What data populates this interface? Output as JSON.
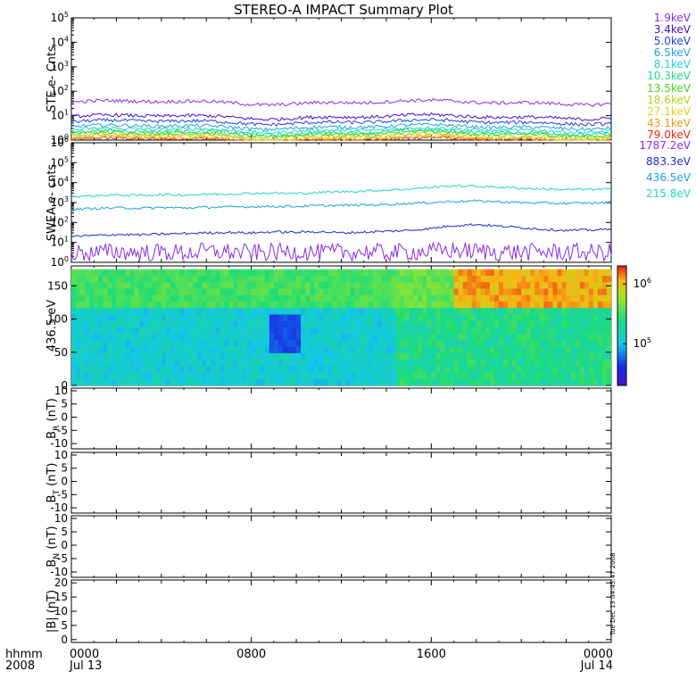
{
  "title": "STEREO-A IMPACT Summary Plot",
  "timestamp": "Tue Dec 13 04:45:47 2008",
  "x_axis": {
    "corner_top": "hhmm",
    "corner_bottom": "2008"
  },
  "ste_legend": [
    {
      "label": "1.9keV",
      "color": "#8a2be2"
    },
    {
      "label": "3.4keV",
      "color": "#4b0bcc"
    },
    {
      "label": "5.0keV",
      "color": "#1f3fe0"
    },
    {
      "label": "6.5keV",
      "color": "#1aa6e0"
    },
    {
      "label": "8.1keV",
      "color": "#20d6c8"
    },
    {
      "label": "10.3keV",
      "color": "#1bd98a"
    },
    {
      "label": "13.5keV",
      "color": "#44d41a"
    },
    {
      "label": "18.6keV",
      "color": "#b2d11a"
    },
    {
      "label": "27.1keV",
      "color": "#e6d21a"
    },
    {
      "label": "43.1keV",
      "color": "#e89a10"
    },
    {
      "label": "79.0keV",
      "color": "#e0280f"
    }
  ],
  "swea_legend": [
    {
      "label": "1787.2eV",
      "color": "#8a2be2"
    },
    {
      "label": "883.3eV",
      "color": "#1a2ad0"
    },
    {
      "label": "436.5eV",
      "color": "#1aa0e0"
    },
    {
      "label": "215.8eV",
      "color": "#20d6c8"
    }
  ],
  "chart_data": [
    {
      "type": "line",
      "panel": "ste",
      "ylabel": "STE e- Cnts",
      "yscale": "log",
      "ylim": [
        1,
        100000
      ],
      "ytick_labels": [
        "10^0",
        "10^1",
        "10^2",
        "10^3",
        "10^4",
        "10^5"
      ],
      "xlim_hours": [
        0,
        24
      ],
      "xtick_labels": [
        [
          "0000",
          "Jul 13"
        ],
        [
          "0800",
          ""
        ],
        [
          "1600",
          ""
        ],
        [
          "0000",
          "Jul 14"
        ]
      ],
      "series": [
        {
          "name": "1.9keV",
          "base": 35,
          "color": "#8a2be2"
        },
        {
          "name": "3.4keV",
          "base": 9,
          "color": "#4b0bcc"
        },
        {
          "name": "5.0keV",
          "base": 5.5,
          "color": "#1f3fe0"
        },
        {
          "name": "6.5keV",
          "base": 3.5,
          "color": "#1aa6e0"
        },
        {
          "name": "8.1keV",
          "base": 2.6,
          "color": "#20d6c8"
        },
        {
          "name": "10.3keV",
          "base": 2.1,
          "color": "#1bd98a"
        },
        {
          "name": "13.5keV",
          "base": 1.8,
          "color": "#44d41a"
        },
        {
          "name": "18.6keV",
          "base": 1.5,
          "color": "#b2d11a"
        },
        {
          "name": "27.1keV",
          "base": 1.3,
          "color": "#e6d21a"
        },
        {
          "name": "43.1keV",
          "base": 1.15,
          "color": "#e89a10"
        },
        {
          "name": "79.0keV",
          "base": 1.05,
          "color": "#e0280f"
        }
      ]
    },
    {
      "type": "line",
      "panel": "swea",
      "ylabel": "SWEA e- cnts",
      "yscale": "log",
      "ylim": [
        1,
        1000000
      ],
      "ytick_labels": [
        "10^0",
        "10^1",
        "10^2",
        "10^3",
        "10^4",
        "10^5",
        "10^6"
      ],
      "series": [
        {
          "name": "215.8eV",
          "values": [
            2000,
            2200,
            2400,
            2300,
            2500,
            2400,
            2600,
            2700,
            2900,
            3000,
            2800,
            3200,
            3500,
            3800,
            4200,
            4800,
            5800,
            7000,
            6500,
            6000,
            5200,
            4800,
            4500,
            4600,
            4800
          ],
          "color": "#20d6c8"
        },
        {
          "name": "436.5eV",
          "values": [
            450,
            500,
            550,
            520,
            560,
            540,
            580,
            600,
            620,
            650,
            640,
            700,
            720,
            760,
            800,
            900,
            1000,
            1150,
            1200,
            1100,
            1000,
            950,
            900,
            950,
            1000
          ],
          "color": "#1aa0e0"
        },
        {
          "name": "883.3eV",
          "values": [
            20,
            22,
            25,
            24,
            26,
            28,
            30,
            32,
            30,
            34,
            32,
            35,
            30,
            33,
            36,
            40,
            50,
            70,
            80,
            65,
            55,
            45,
            40,
            42,
            45
          ],
          "color": "#1a2ad0"
        },
        {
          "name": "1787.2eV",
          "values": [
            3,
            3,
            3.5,
            3,
            3.2,
            3,
            3.5,
            3.3,
            3,
            3.2,
            3.5,
            3,
            3.2,
            3.4,
            3,
            3.3,
            3.5,
            4,
            3.6,
            3.3,
            3.2,
            3.4,
            3.3,
            3.1,
            3.2
          ],
          "color": "#8a2be2"
        }
      ]
    },
    {
      "type": "heatmap",
      "panel": "pad",
      "ylabel": "436.5 eV",
      "ylim": [
        0,
        180
      ],
      "ytick_labels": [
        "0",
        "50",
        "100",
        "150"
      ],
      "colorbar_tick_labels": [
        "10^5",
        "10^6"
      ],
      "colorbar_range": [
        20000,
        2000000
      ]
    },
    {
      "type": "line",
      "panel": "br",
      "ylabel": "B_R (nT)",
      "ylim": [
        -12,
        11
      ],
      "ytick_labels": [
        "10",
        "5",
        "0",
        "-5",
        "-10"
      ],
      "series": []
    },
    {
      "type": "line",
      "panel": "bt",
      "ylabel": "B_T (nT)",
      "ylim": [
        -12,
        11
      ],
      "ytick_labels": [
        "10",
        "5",
        "0",
        "-5",
        "-10"
      ],
      "series": []
    },
    {
      "type": "line",
      "panel": "bn",
      "ylabel": "B_N (nT)",
      "ylim": [
        -12,
        11
      ],
      "ytick_labels": [
        "10",
        "5",
        "0",
        "-5",
        "-10"
      ],
      "series": []
    },
    {
      "type": "line",
      "panel": "bmag",
      "ylabel": "|B| (nT)",
      "ylim": [
        -1,
        21
      ],
      "ytick_labels": [
        "20",
        "15",
        "10",
        "5",
        "0"
      ],
      "series": []
    }
  ]
}
